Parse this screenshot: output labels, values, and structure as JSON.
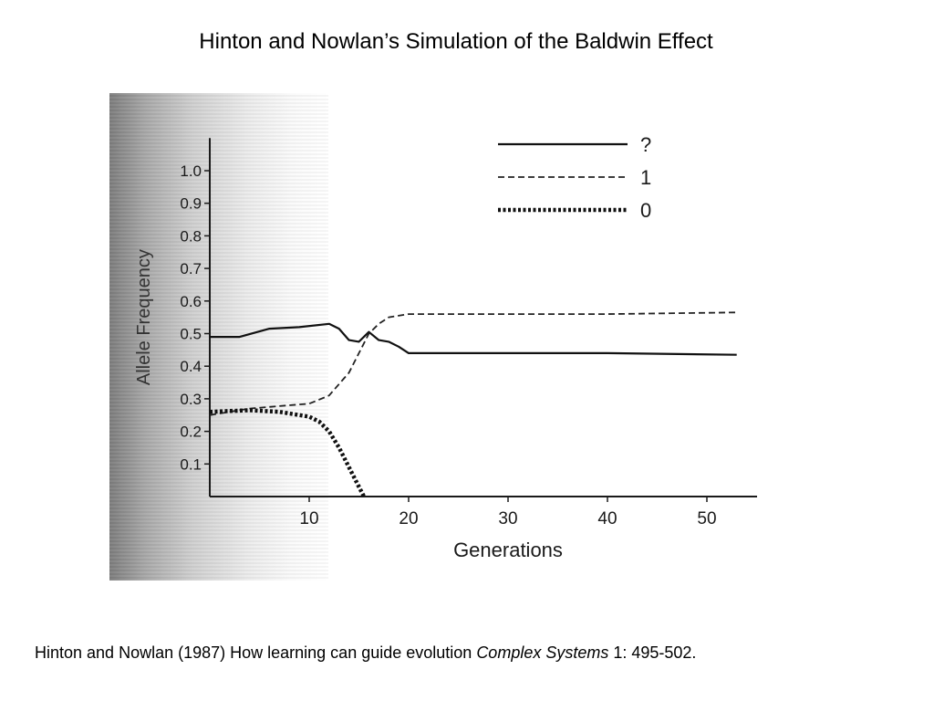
{
  "slide": {
    "title": "Hinton and Nowlan’s Simulation of the Baldwin Effect",
    "citation": {
      "prefix": "Hinton and Nowlan (1987) How learning can guide evolution ",
      "journal": "Complex Systems",
      "suffix": " 1: 495-502."
    }
  },
  "chart_data": {
    "type": "line",
    "title": "",
    "xlabel": "Generations",
    "ylabel": "Allele Frequency",
    "xlim": [
      0,
      55
    ],
    "ylim": [
      0,
      1.1
    ],
    "xticks": [
      10,
      20,
      30,
      40,
      50
    ],
    "yticks": [
      0.1,
      0.2,
      0.3,
      0.4,
      0.5,
      0.6,
      0.7,
      0.8,
      0.9,
      1.0
    ],
    "ytick_labels": [
      "0.1",
      "0.2",
      "0.3",
      "0.4",
      "0.5",
      "0.6",
      "0.7",
      "0.8",
      "0.9",
      "1.0"
    ],
    "legend_position": "top-right",
    "grid": false,
    "series": [
      {
        "name": "?",
        "style": "solid",
        "color": "#111111",
        "points": [
          [
            0,
            0.49
          ],
          [
            3,
            0.49
          ],
          [
            6,
            0.515
          ],
          [
            9,
            0.52
          ],
          [
            12,
            0.53
          ],
          [
            13,
            0.515
          ],
          [
            14,
            0.48
          ],
          [
            15,
            0.475
          ],
          [
            16,
            0.505
          ],
          [
            17,
            0.48
          ],
          [
            18,
            0.475
          ],
          [
            19,
            0.46
          ],
          [
            20,
            0.44
          ],
          [
            30,
            0.44
          ],
          [
            40,
            0.44
          ],
          [
            53,
            0.435
          ]
        ]
      },
      {
        "name": "1",
        "style": "dashed",
        "color": "#222222",
        "points": [
          [
            0,
            0.25
          ],
          [
            4,
            0.27
          ],
          [
            8,
            0.28
          ],
          [
            10,
            0.285
          ],
          [
            12,
            0.31
          ],
          [
            14,
            0.38
          ],
          [
            15,
            0.44
          ],
          [
            16,
            0.5
          ],
          [
            17,
            0.53
          ],
          [
            18,
            0.55
          ],
          [
            20,
            0.56
          ],
          [
            30,
            0.56
          ],
          [
            40,
            0.56
          ],
          [
            53,
            0.565
          ]
        ]
      },
      {
        "name": "0",
        "style": "dotted",
        "color": "#111111",
        "points": [
          [
            0,
            0.26
          ],
          [
            4,
            0.265
          ],
          [
            7,
            0.26
          ],
          [
            10,
            0.245
          ],
          [
            11,
            0.23
          ],
          [
            12,
            0.2
          ],
          [
            13,
            0.15
          ],
          [
            14,
            0.09
          ],
          [
            15,
            0.03
          ],
          [
            15.5,
            0.0
          ]
        ]
      }
    ]
  }
}
